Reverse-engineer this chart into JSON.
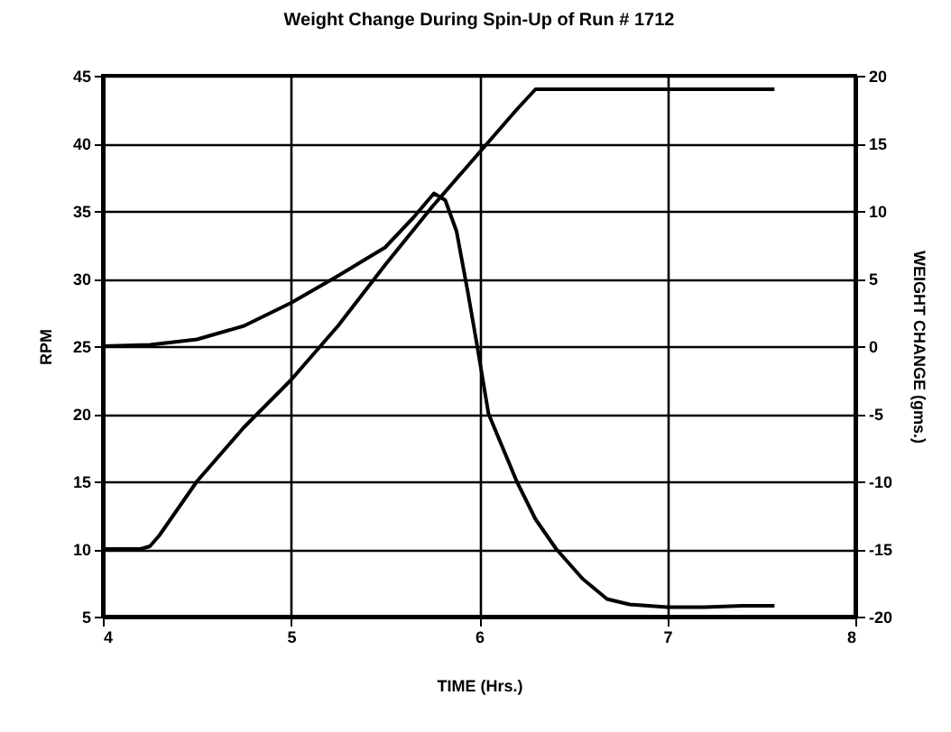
{
  "chart_data": {
    "type": "line",
    "title": "Weight Change During Spin-Up of Run # 1712",
    "xlabel": "TIME    (Hrs.)",
    "ylabel": "RPM",
    "y2label": "WEIGHT CHANGE (gms.)",
    "series": [
      {
        "color": "#000000",
        "x": [
          4,
          4.1,
          4.2,
          4.25,
          4.3,
          4.5,
          4.75,
          5,
          5.25,
          5.5,
          5.75,
          6,
          6.2,
          6.3,
          6.5,
          7,
          7.57
        ],
        "values": [
          10,
          10,
          10,
          10.2,
          11,
          15,
          19,
          22.5,
          26.5,
          31,
          35.3,
          39.3,
          42.5,
          44,
          44,
          44,
          44
        ]
      },
      {
        "color": "#000000",
        "axis": "y2",
        "x": [
          4,
          4.25,
          4.5,
          4.75,
          5,
          5.25,
          5.5,
          5.65,
          5.76,
          5.82,
          5.88,
          5.94,
          5.99,
          6.05,
          6.2,
          6.3,
          6.41,
          6.55,
          6.68,
          6.8,
          7,
          7.2,
          7.4,
          7.57
        ],
        "values": [
          0,
          0.1,
          0.5,
          1.5,
          3.2,
          5.2,
          7.3,
          9.5,
          11.3,
          10.8,
          8.5,
          4,
          0,
          -5,
          -10,
          -12.8,
          -15,
          -17.2,
          -18.7,
          -19.1,
          -19.3,
          -19.3,
          -19.2,
          -19.2
        ]
      }
    ],
    "xlim": [
      4,
      8
    ],
    "xticks": [
      4,
      5,
      6,
      7,
      8
    ],
    "ylim": [
      5,
      45
    ],
    "yticks": [
      5,
      10,
      15,
      20,
      25,
      30,
      35,
      40,
      45
    ],
    "y2lim": [
      -20,
      20
    ],
    "y2ticks": [
      -20,
      -15,
      -10,
      -5,
      0,
      5,
      10,
      15,
      20
    ],
    "grid": true,
    "marker": "none",
    "line_style": "solid"
  }
}
